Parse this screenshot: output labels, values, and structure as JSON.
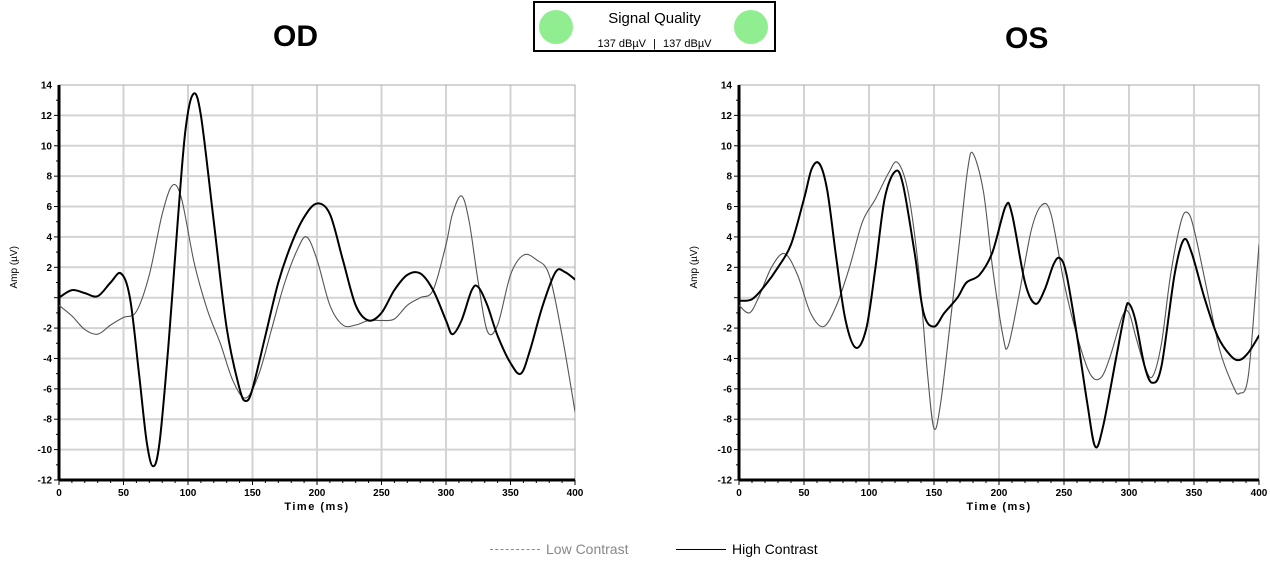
{
  "signal_quality": {
    "title": "Signal Quality",
    "od_value": "137 dBµV",
    "separator": "|",
    "os_value": "137 dBµV",
    "indicator_color": "#90ee90"
  },
  "legend": {
    "low_label": "Low Contrast",
    "high_label": "High Contrast",
    "low_color": "#888888",
    "high_color": "#000000"
  },
  "chart_data": [
    {
      "type": "line",
      "title": "OD",
      "xlabel": "Time (ms)",
      "ylabel": "Amp (µV)",
      "xlim": [
        0,
        400
      ],
      "ylim": [
        -12,
        14
      ],
      "xticks": [
        0,
        50,
        100,
        150,
        200,
        250,
        300,
        350,
        400
      ],
      "yticks": [
        -12,
        -10,
        -8,
        -6,
        -4,
        -2,
        2,
        4,
        6,
        8,
        10,
        12,
        14
      ],
      "grid": true,
      "series": [
        {
          "name": "Low Contrast",
          "color": "#555555",
          "points": [
            [
              0,
              -0.5
            ],
            [
              10,
              -1.2
            ],
            [
              20,
              -2.1
            ],
            [
              30,
              -2.4
            ],
            [
              40,
              -1.8
            ],
            [
              50,
              -1.3
            ],
            [
              60,
              -0.9
            ],
            [
              70,
              1.5
            ],
            [
              80,
              5.5
            ],
            [
              88,
              7.4
            ],
            [
              95,
              6.5
            ],
            [
              105,
              2.2
            ],
            [
              115,
              -0.8
            ],
            [
              125,
              -3.0
            ],
            [
              135,
              -5.5
            ],
            [
              145,
              -6.6
            ],
            [
              155,
              -5.0
            ],
            [
              165,
              -2.0
            ],
            [
              175,
              1.0
            ],
            [
              185,
              3.2
            ],
            [
              192,
              4.0
            ],
            [
              200,
              2.5
            ],
            [
              210,
              -0.5
            ],
            [
              220,
              -1.8
            ],
            [
              230,
              -1.8
            ],
            [
              240,
              -1.5
            ],
            [
              250,
              -1.5
            ],
            [
              260,
              -1.4
            ],
            [
              270,
              -0.5
            ],
            [
              280,
              0.0
            ],
            [
              290,
              0.5
            ],
            [
              300,
              3.5
            ],
            [
              305,
              5.5
            ],
            [
              312,
              6.7
            ],
            [
              318,
              5.0
            ],
            [
              325,
              1.0
            ],
            [
              332,
              -2.2
            ],
            [
              340,
              -1.8
            ],
            [
              350,
              1.5
            ],
            [
              360,
              2.8
            ],
            [
              370,
              2.5
            ],
            [
              380,
              1.5
            ],
            [
              390,
              -2.5
            ],
            [
              400,
              -7.5
            ]
          ]
        },
        {
          "name": "High Contrast",
          "color": "#000000",
          "points": [
            [
              0,
              0.0
            ],
            [
              10,
              0.5
            ],
            [
              20,
              0.3
            ],
            [
              30,
              0.1
            ],
            [
              40,
              1.0
            ],
            [
              48,
              1.6
            ],
            [
              55,
              0.0
            ],
            [
              62,
              -5.0
            ],
            [
              68,
              -9.5
            ],
            [
              73,
              -11.1
            ],
            [
              78,
              -9.5
            ],
            [
              85,
              -3.0
            ],
            [
              92,
              5.0
            ],
            [
              98,
              11.0
            ],
            [
              104,
              13.4
            ],
            [
              110,
              12.0
            ],
            [
              120,
              5.0
            ],
            [
              130,
              -2.0
            ],
            [
              140,
              -6.0
            ],
            [
              145,
              -6.8
            ],
            [
              150,
              -6.0
            ],
            [
              160,
              -2.5
            ],
            [
              170,
              1.0
            ],
            [
              180,
              3.5
            ],
            [
              190,
              5.3
            ],
            [
              200,
              6.2
            ],
            [
              210,
              5.5
            ],
            [
              220,
              2.5
            ],
            [
              230,
              -0.5
            ],
            [
              240,
              -1.5
            ],
            [
              250,
              -1.0
            ],
            [
              260,
              0.5
            ],
            [
              270,
              1.5
            ],
            [
              280,
              1.6
            ],
            [
              290,
              0.5
            ],
            [
              300,
              -1.5
            ],
            [
              305,
              -2.4
            ],
            [
              312,
              -1.5
            ],
            [
              320,
              0.5
            ],
            [
              325,
              0.7
            ],
            [
              332,
              -0.5
            ],
            [
              340,
              -2.5
            ],
            [
              350,
              -4.3
            ],
            [
              358,
              -5.0
            ],
            [
              365,
              -3.5
            ],
            [
              375,
              -0.5
            ],
            [
              385,
              1.7
            ],
            [
              392,
              1.7
            ],
            [
              400,
              1.2
            ]
          ]
        }
      ]
    },
    {
      "type": "line",
      "title": "OS",
      "xlabel": "Time (ms)",
      "ylabel": "Amp (µV)",
      "xlim": [
        0,
        400
      ],
      "ylim": [
        -12,
        14
      ],
      "xticks": [
        0,
        50,
        100,
        150,
        200,
        250,
        300,
        350,
        400
      ],
      "yticks": [
        -12,
        -10,
        -8,
        -6,
        -4,
        -2,
        2,
        4,
        6,
        8,
        10,
        12,
        14
      ],
      "grid": true,
      "series": [
        {
          "name": "Low Contrast",
          "color": "#555555",
          "points": [
            [
              0,
              -0.5
            ],
            [
              8,
              -1.0
            ],
            [
              15,
              0.0
            ],
            [
              25,
              2.0
            ],
            [
              35,
              2.9
            ],
            [
              45,
              1.5
            ],
            [
              55,
              -1.0
            ],
            [
              65,
              -1.9
            ],
            [
              75,
              -0.5
            ],
            [
              85,
              2.0
            ],
            [
              95,
              5.0
            ],
            [
              105,
              6.5
            ],
            [
              115,
              8.2
            ],
            [
              122,
              8.9
            ],
            [
              130,
              7.0
            ],
            [
              138,
              2.0
            ],
            [
              145,
              -5.0
            ],
            [
              150,
              -8.6
            ],
            [
              155,
              -7.0
            ],
            [
              162,
              -2.0
            ],
            [
              170,
              4.0
            ],
            [
              176,
              8.5
            ],
            [
              180,
              9.5
            ],
            [
              188,
              7.0
            ],
            [
              195,
              2.0
            ],
            [
              203,
              -2.5
            ],
            [
              207,
              -3.2
            ],
            [
              215,
              0.0
            ],
            [
              225,
              4.5
            ],
            [
              233,
              6.1
            ],
            [
              240,
              5.5
            ],
            [
              250,
              1.0
            ],
            [
              260,
              -2.5
            ],
            [
              270,
              -5.0
            ],
            [
              278,
              -5.3
            ],
            [
              285,
              -4.0
            ],
            [
              295,
              -1.2
            ],
            [
              300,
              -1.0
            ],
            [
              305,
              -2.5
            ],
            [
              312,
              -4.5
            ],
            [
              318,
              -5.2
            ],
            [
              325,
              -3.0
            ],
            [
              332,
              1.5
            ],
            [
              340,
              5.0
            ],
            [
              345,
              5.6
            ],
            [
              350,
              4.5
            ],
            [
              360,
              0.5
            ],
            [
              370,
              -3.5
            ],
            [
              380,
              -5.8
            ],
            [
              385,
              -6.3
            ],
            [
              392,
              -5.0
            ],
            [
              400,
              3.5
            ]
          ]
        },
        {
          "name": "High Contrast",
          "color": "#000000",
          "points": [
            [
              0,
              -0.2
            ],
            [
              10,
              -0.1
            ],
            [
              20,
              0.8
            ],
            [
              30,
              2.0
            ],
            [
              40,
              3.5
            ],
            [
              50,
              6.5
            ],
            [
              56,
              8.5
            ],
            [
              62,
              8.8
            ],
            [
              68,
              7.0
            ],
            [
              75,
              2.5
            ],
            [
              82,
              -1.5
            ],
            [
              90,
              -3.3
            ],
            [
              98,
              -2.0
            ],
            [
              105,
              2.0
            ],
            [
              112,
              6.5
            ],
            [
              120,
              8.3
            ],
            [
              126,
              7.5
            ],
            [
              135,
              3.0
            ],
            [
              142,
              -1.0
            ],
            [
              150,
              -1.9
            ],
            [
              158,
              -1.0
            ],
            [
              168,
              0.0
            ],
            [
              175,
              1.0
            ],
            [
              185,
              1.5
            ],
            [
              195,
              3.0
            ],
            [
              205,
              6.0
            ],
            [
              210,
              5.5
            ],
            [
              220,
              1.0
            ],
            [
              228,
              -0.4
            ],
            [
              235,
              0.5
            ],
            [
              242,
              2.2
            ],
            [
              247,
              2.6
            ],
            [
              252,
              1.5
            ],
            [
              260,
              -2.5
            ],
            [
              268,
              -7.0
            ],
            [
              274,
              -9.8
            ],
            [
              280,
              -8.5
            ],
            [
              290,
              -4.0
            ],
            [
              297,
              -0.9
            ],
            [
              300,
              -0.4
            ],
            [
              305,
              -1.5
            ],
            [
              312,
              -4.5
            ],
            [
              318,
              -5.6
            ],
            [
              325,
              -4.5
            ],
            [
              335,
              1.5
            ],
            [
              342,
              3.8
            ],
            [
              348,
              3.0
            ],
            [
              358,
              0.0
            ],
            [
              368,
              -2.5
            ],
            [
              378,
              -3.8
            ],
            [
              385,
              -4.1
            ],
            [
              392,
              -3.6
            ],
            [
              400,
              -2.5
            ]
          ]
        }
      ]
    }
  ]
}
